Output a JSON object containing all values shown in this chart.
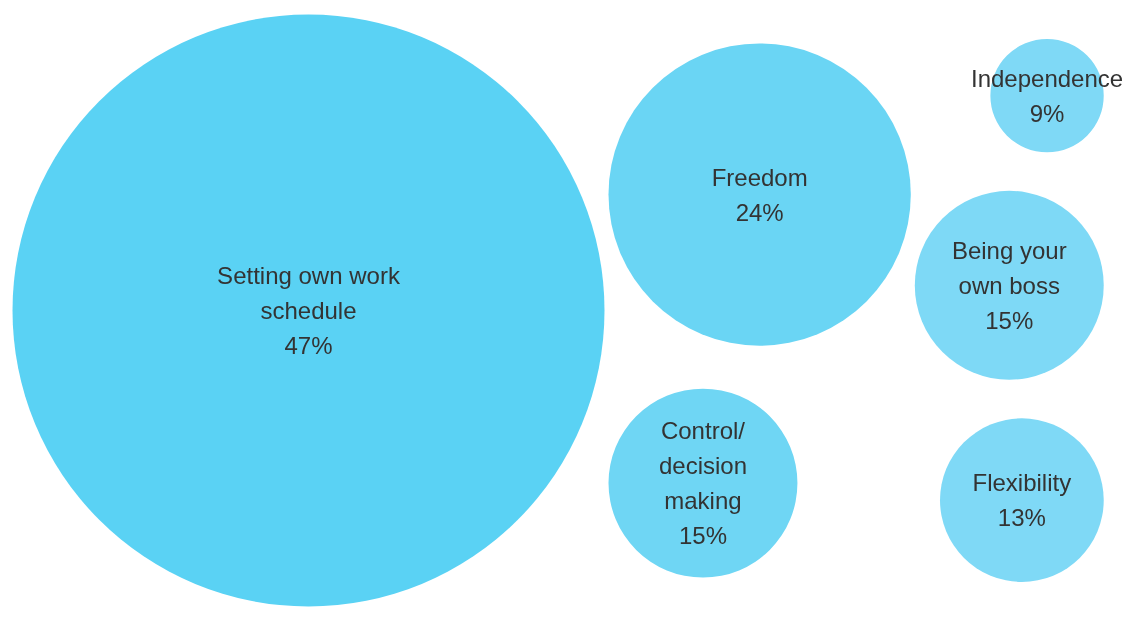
{
  "chart_data": {
    "type": "other",
    "categories": [
      "Setting own work\nschedule",
      "Freedom",
      "Control/\ndecision\nmaking",
      "Independence",
      "Being your\nown boss",
      "Flexibility"
    ],
    "values": [
      47,
      24,
      15,
      9,
      15,
      13
    ],
    "value_labels": [
      "47%",
      "24%",
      "15%",
      "9%",
      "15%",
      "13%"
    ],
    "colors": [
      "#5ad2f4",
      "#6ad5f4",
      "#6fd6f4",
      "#7fd9f6",
      "#7ed9f6",
      "#7fd9f6"
    ]
  }
}
